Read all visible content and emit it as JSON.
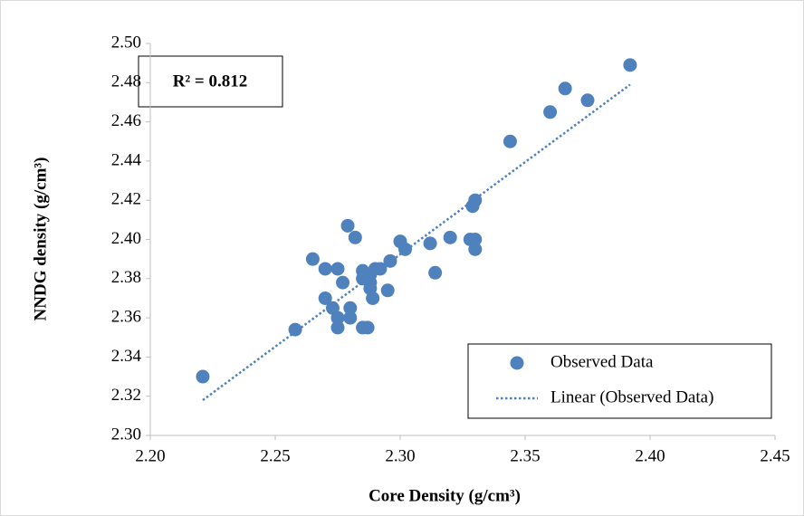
{
  "chart_data": {
    "type": "scatter",
    "annotation": "R² = 0.812",
    "x_label": "Core Density (g/cm³)",
    "y_label": "NNDG density (g/cm³)",
    "xlim": [
      2.2,
      2.45
    ],
    "ylim": [
      2.3,
      2.5
    ],
    "xticks": [
      {
        "value": 2.2,
        "label": "2.20"
      },
      {
        "value": 2.25,
        "label": "2.25"
      },
      {
        "value": 2.3,
        "label": "2.30"
      },
      {
        "value": 2.35,
        "label": "2.35"
      },
      {
        "value": 2.4,
        "label": "2.40"
      },
      {
        "value": 2.45,
        "label": "2.45"
      }
    ],
    "yticks": [
      {
        "value": 2.3,
        "label": "2.30"
      },
      {
        "value": 2.32,
        "label": "2.32"
      },
      {
        "value": 2.34,
        "label": "2.34"
      },
      {
        "value": 2.36,
        "label": "2.36"
      },
      {
        "value": 2.38,
        "label": "2.38"
      },
      {
        "value": 2.4,
        "label": "2.40"
      },
      {
        "value": 2.42,
        "label": "2.42"
      },
      {
        "value": 2.44,
        "label": "2.44"
      },
      {
        "value": 2.46,
        "label": "2.46"
      },
      {
        "value": 2.48,
        "label": "2.48"
      },
      {
        "value": 2.5,
        "label": "2.50"
      }
    ],
    "grid": false,
    "legend": "bottom-right",
    "series": [
      {
        "name": "Observed Data",
        "color": "#4f81bd",
        "x": [
          2.221,
          2.258,
          2.265,
          2.27,
          2.27,
          2.273,
          2.275,
          2.275,
          2.275,
          2.277,
          2.279,
          2.28,
          2.28,
          2.282,
          2.285,
          2.285,
          2.285,
          2.287,
          2.288,
          2.288,
          2.288,
          2.289,
          2.29,
          2.292,
          2.295,
          2.296,
          2.3,
          2.302,
          2.312,
          2.314,
          2.32,
          2.328,
          2.329,
          2.33,
          2.33,
          2.33,
          2.344,
          2.36,
          2.366,
          2.375,
          2.392
        ],
        "values": [
          2.33,
          2.354,
          2.39,
          2.385,
          2.37,
          2.365,
          2.36,
          2.355,
          2.385,
          2.378,
          2.407,
          2.365,
          2.36,
          2.401,
          2.384,
          2.38,
          2.355,
          2.355,
          2.378,
          2.375,
          2.382,
          2.37,
          2.385,
          2.385,
          2.374,
          2.389,
          2.399,
          2.395,
          2.398,
          2.383,
          2.401,
          2.4,
          2.417,
          2.42,
          2.4,
          2.395,
          2.45,
          2.465,
          2.477,
          2.471,
          2.489
        ]
      }
    ],
    "trendline": {
      "name": "Linear (Observed Data)",
      "color": "#4f81bd",
      "x": [
        2.221,
        2.392
      ],
      "values": [
        2.318,
        2.479
      ]
    }
  }
}
